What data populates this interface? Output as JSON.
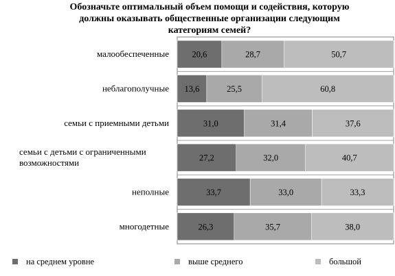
{
  "chart_data": {
    "type": "bar",
    "orientation": "horizontal",
    "stacked": true,
    "title": [
      "Обозначьте оптимальный объем помощи и содействия, которую",
      "должны оказывать общественные организации следующим",
      "категориям семей?"
    ],
    "categories": [
      [
        "малообеспеченные"
      ],
      [
        "неблагополучные"
      ],
      [
        "семьи с приемными детьми"
      ],
      [
        "семьи с детьми с ограниченными",
        "возможностями"
      ],
      [
        "неполные"
      ],
      [
        "многодетные"
      ]
    ],
    "series": [
      {
        "name": "на среднем уровне",
        "color": "#6e6e6e",
        "values": [
          "20,6",
          "13,6",
          "31,0",
          "27,2",
          "33,7",
          "26,3"
        ]
      },
      {
        "name": "выше среднего",
        "color": "#a9a9a9",
        "values": [
          "28,7",
          "25,5",
          "31,4",
          "32,0",
          "33,0",
          "35,7"
        ]
      },
      {
        "name": "большой",
        "color": "#bdbdbd",
        "values": [
          "50,7",
          "60,8",
          "37,6",
          "40,7",
          "33,3",
          "38,0"
        ]
      }
    ],
    "xlim": [
      0,
      100
    ],
    "grid": true,
    "legend_position": "bottom"
  }
}
